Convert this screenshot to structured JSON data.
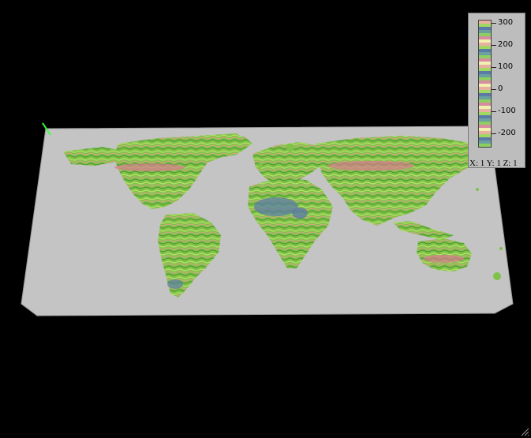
{
  "legend": {
    "ticks": [
      {
        "value": 300,
        "label": "300"
      },
      {
        "value": 200,
        "label": "200"
      },
      {
        "value": 100,
        "label": "100"
      },
      {
        "value": 0,
        "label": "0"
      },
      {
        "value": -100,
        "label": "-100"
      },
      {
        "value": -200,
        "label": "-200"
      }
    ],
    "range": [
      -260,
      310
    ],
    "colors": [
      "#e8b0a0",
      "#a0d860",
      "#5a7aa8",
      "#6aa0a0",
      "#8ccf60",
      "#d88ca0",
      "#f0f0b0"
    ],
    "scale_readout": "X: 1 Y: 1 Z: 1"
  },
  "map": {
    "plane_color": "#c4c4c4",
    "land_colors": [
      "#6fae3a",
      "#8fd050",
      "#b6e06a",
      "#e59a8e",
      "#d06c80",
      "#5a6f9a",
      "#e8e4a0"
    ]
  }
}
